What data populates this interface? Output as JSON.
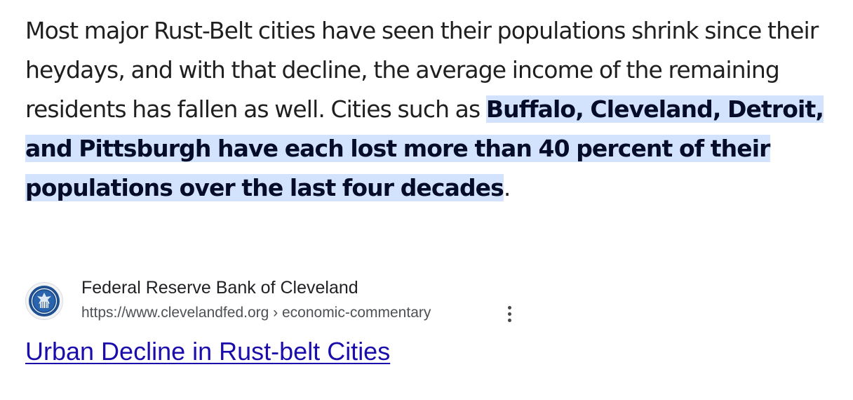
{
  "snippet": {
    "text_before": "Most major Rust-Belt cities have seen their populations shrink since their heydays, and with that decline, the average income of the remaining residents has fallen as well. Cities such as ",
    "text_highlighted": "Buffalo, Cleveland, Detroit, and Pittsburgh have each lost more than 40 percent of their populations over the last four decades",
    "text_after": "."
  },
  "source": {
    "favicon": "federal-reserve-seal-icon",
    "site_name": "Federal Reserve Bank of Cleveland",
    "url": "https://www.clevelandfed.org › economic-commentary",
    "more_icon": "more-vert-icon"
  },
  "result": {
    "title": "Urban Decline in Rust-belt Cities"
  },
  "colors": {
    "highlight_bg": "#d3e3fd",
    "link": "#1a0dab",
    "text": "#1f1f1f",
    "seal_blue": "#1d4f91"
  }
}
